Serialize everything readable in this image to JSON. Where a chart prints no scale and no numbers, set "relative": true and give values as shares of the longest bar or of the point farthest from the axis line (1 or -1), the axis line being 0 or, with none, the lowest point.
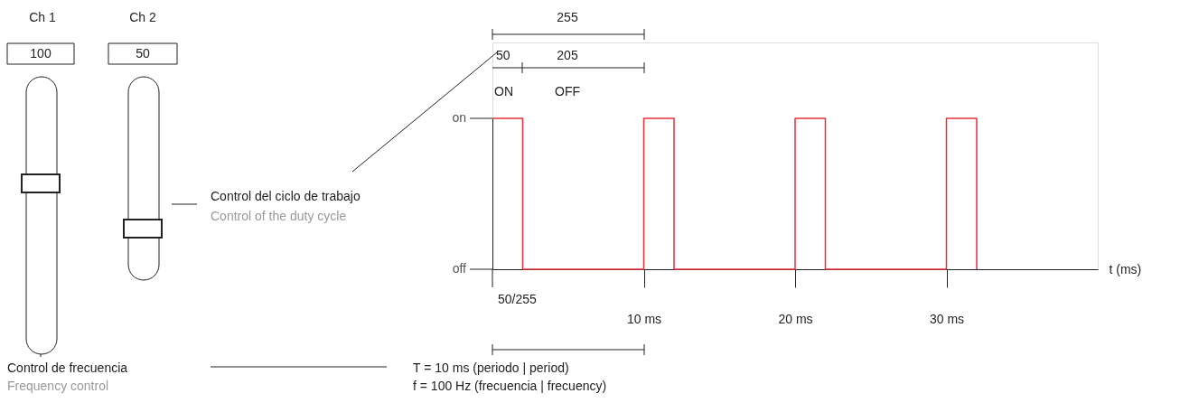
{
  "chart_data": {
    "type": "step",
    "xlabel": "t (ms)",
    "xlim": [
      0,
      40
    ],
    "relative": true,
    "xticks": [
      {
        "value": 10,
        "label": "10 ms"
      },
      {
        "value": 20,
        "label": "20 ms"
      },
      {
        "value": 30,
        "label": "30 ms"
      }
    ],
    "x": [
      0,
      2,
      10,
      12,
      20,
      22,
      30,
      32
    ],
    "series": [
      {
        "color": "#e5303a",
        "values": [
          1,
          0,
          1,
          0,
          1,
          0,
          1,
          0
        ]
      }
    ],
    "grid": false,
    "annotations": [
      "Ch 1",
      "Ch 2",
      "100",
      "50",
      "Control del ciclo de trabajo",
      "Control of the duty cycle",
      "Control de frecuencia",
      "Frequency control",
      "255",
      "50",
      "205",
      "ON",
      "OFF",
      "50/255",
      "T = 10 ms (periodo | period)",
      "f = 100 Hz (frecuencia | frecuency)",
      "on",
      "off"
    ]
  }
}
